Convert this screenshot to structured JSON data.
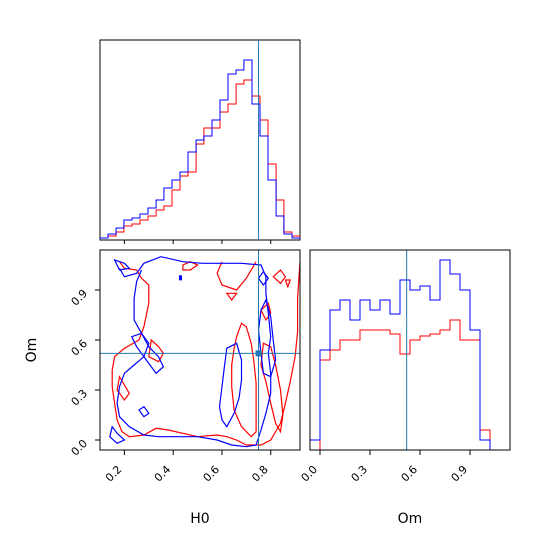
{
  "chart_data": {
    "type": "corner",
    "parameters": [
      "H0",
      "Om"
    ],
    "truth": {
      "H0": 0.75,
      "Om": 0.52
    },
    "truth_color": "#1f77b4",
    "series": [
      {
        "color": "#ff0000"
      },
      {
        "color": "#0000ff"
      }
    ],
    "panels": [
      {
        "id": "H0-marginal",
        "type": "histogram",
        "xlim": [
          0.1,
          0.92
        ],
        "bin_edges": [
          0.1,
          0.133,
          0.166,
          0.198,
          0.231,
          0.264,
          0.297,
          0.33,
          0.362,
          0.395,
          0.428,
          0.461,
          0.494,
          0.526,
          0.559,
          0.592,
          0.625,
          0.658,
          0.69,
          0.723,
          0.756,
          0.789,
          0.822,
          0.854,
          0.887,
          0.92
        ],
        "red_counts": [
          0.01,
          0.02,
          0.04,
          0.07,
          0.08,
          0.1,
          0.12,
          0.15,
          0.17,
          0.25,
          0.32,
          0.34,
          0.48,
          0.56,
          0.56,
          0.64,
          0.68,
          0.78,
          0.8,
          0.72,
          0.6,
          0.38,
          0.2,
          0.04,
          0.02
        ],
        "blue_counts": [
          0.01,
          0.03,
          0.06,
          0.1,
          0.11,
          0.13,
          0.16,
          0.2,
          0.26,
          0.3,
          0.34,
          0.44,
          0.5,
          0.52,
          0.6,
          0.7,
          0.83,
          0.85,
          0.9,
          0.68,
          0.52,
          0.3,
          0.12,
          0.03,
          0.01
        ],
        "ylim": [
          0,
          1
        ]
      },
      {
        "id": "H0-Om-joint",
        "type": "contour",
        "xlabel": "H0",
        "ylabel": "Om",
        "xlim": [
          0.1,
          0.92
        ],
        "ylim": [
          -0.06,
          1.14
        ],
        "xticks": [
          0.2,
          0.4,
          0.6,
          0.8
        ],
        "yticks": [
          0.0,
          0.3,
          0.6,
          0.9
        ]
      },
      {
        "id": "Om-marginal",
        "type": "histogram",
        "xlabel": "Om",
        "xlim": [
          -0.06,
          1.14
        ],
        "xticks": [
          0.0,
          0.3,
          0.6,
          0.9
        ],
        "bin_edges": [
          -0.06,
          0.0,
          0.06,
          0.12,
          0.18,
          0.24,
          0.3,
          0.36,
          0.42,
          0.48,
          0.54,
          0.6,
          0.66,
          0.72,
          0.78,
          0.84,
          0.9,
          0.96,
          1.02,
          1.08,
          1.14
        ],
        "red_counts": [
          0.0,
          0.45,
          0.5,
          0.55,
          0.55,
          0.6,
          0.6,
          0.6,
          0.58,
          0.48,
          0.55,
          0.57,
          0.58,
          0.6,
          0.65,
          0.55,
          0.55,
          0.1,
          0.0,
          0.0
        ],
        "blue_counts": [
          0.05,
          0.5,
          0.7,
          0.75,
          0.65,
          0.75,
          0.7,
          0.75,
          0.68,
          0.85,
          0.8,
          0.82,
          0.75,
          0.95,
          0.88,
          0.8,
          0.6,
          0.05,
          0.0,
          0.0
        ],
        "ylim": [
          0,
          1
        ]
      }
    ],
    "xlabel": "H0",
    "ylabel": "Om"
  }
}
